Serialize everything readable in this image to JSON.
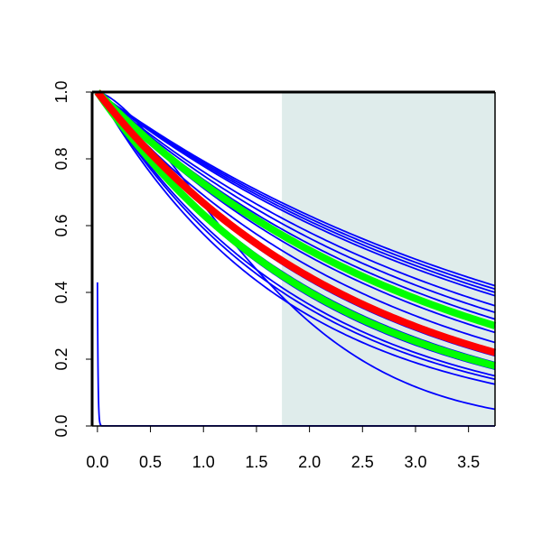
{
  "chart_data": {
    "type": "line",
    "title": "",
    "xlabel": "",
    "ylabel": "",
    "xlim": [
      -0.05,
      3.75
    ],
    "ylim": [
      0.0,
      1.0
    ],
    "x_ticks": [
      "0.0",
      "0.5",
      "1.0",
      "1.5",
      "2.0",
      "2.5",
      "3.0",
      "3.5"
    ],
    "x_tick_values": [
      0.0,
      0.5,
      1.0,
      1.5,
      2.0,
      2.5,
      3.0,
      3.5
    ],
    "y_ticks": [
      "0.0",
      "0.2",
      "0.4",
      "0.6",
      "0.8",
      "1.0"
    ],
    "y_tick_values": [
      0.0,
      0.2,
      0.4,
      0.6,
      0.8,
      1.0
    ],
    "shaded_region": {
      "x_from": 1.74,
      "x_to": 3.75,
      "color": "#dfeceb"
    },
    "grid": false,
    "legend": "none",
    "series": [
      {
        "color": "#0000ff",
        "kind": "exp",
        "end_value": 0.42
      },
      {
        "color": "#0000ff",
        "kind": "exp",
        "end_value": 0.41
      },
      {
        "color": "#0000ff",
        "kind": "exp",
        "end_value": 0.4
      },
      {
        "color": "#0000ff",
        "kind": "exp",
        "end_value": 0.39
      },
      {
        "color": "#0000ff",
        "kind": "exp",
        "end_value": 0.36
      },
      {
        "color": "#0000ff",
        "kind": "exp",
        "end_value": 0.34
      },
      {
        "color": "#0000ff",
        "kind": "exp",
        "end_value": 0.32
      },
      {
        "color": "#0000ff",
        "kind": "exp",
        "end_value": 0.28
      },
      {
        "color": "#0000ff",
        "kind": "exp",
        "end_value": 0.25
      },
      {
        "color": "#0000ff",
        "kind": "exp",
        "end_value": 0.21
      },
      {
        "color": "#0000ff",
        "kind": "exp",
        "end_value": 0.19
      },
      {
        "color": "#0000ff",
        "kind": "exp",
        "end_value": 0.17
      },
      {
        "color": "#0000ff",
        "kind": "exp",
        "end_value": 0.15
      },
      {
        "color": "#0000ff",
        "kind": "exp",
        "end_value": 0.14
      },
      {
        "color": "#0000ff",
        "kind": "exp",
        "end_value": 0.125
      },
      {
        "color": "#0000ff",
        "kind": "gauss",
        "end_value": 0.05
      },
      {
        "color": "#0000ff",
        "kind": "spike",
        "start_value": 0.43,
        "decay_to_zero_at": 0.03
      },
      {
        "color": "#00ff00",
        "kind": "exp",
        "end_value": 0.3,
        "thick": true
      },
      {
        "color": "#00ff00",
        "kind": "exp",
        "end_value": 0.18,
        "thick": true
      },
      {
        "color": "#ff0000",
        "kind": "exp",
        "end_value": 0.22,
        "thick": true
      }
    ]
  }
}
